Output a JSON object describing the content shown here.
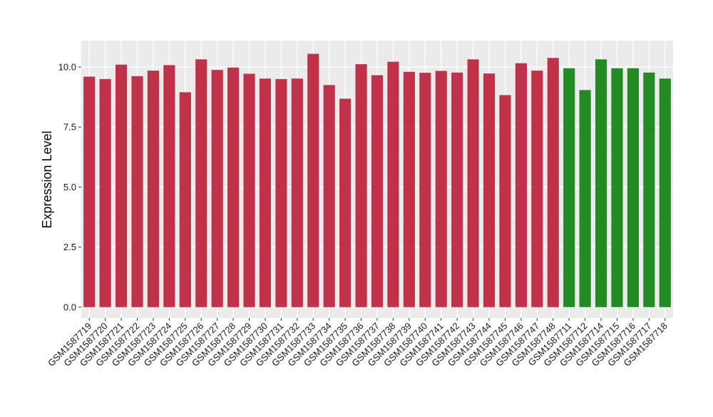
{
  "chart_data": {
    "type": "bar",
    "title": "",
    "xlabel": "",
    "ylabel": "Expression Level",
    "ylim": [
      -0.45,
      11.1
    ],
    "yticks": [
      0.0,
      2.5,
      5.0,
      7.5,
      10.0
    ],
    "ytick_labels": [
      "0.0",
      "2.5",
      "5.0",
      "7.5",
      "10.0"
    ],
    "grid": true,
    "legend": "none",
    "categories": [
      "GSM1587719",
      "GSM1587720",
      "GSM1587721",
      "GSM1587722",
      "GSM1587723",
      "GSM1587724",
      "GSM1587725",
      "GSM1587726",
      "GSM1587727",
      "GSM1587728",
      "GSM1587729",
      "GSM1587730",
      "GSM1587731",
      "GSM1587732",
      "GSM1587733",
      "GSM1587734",
      "GSM1587735",
      "GSM1587736",
      "GSM1587737",
      "GSM1587738",
      "GSM1587739",
      "GSM1587740",
      "GSM1587741",
      "GSM1587742",
      "GSM1587743",
      "GSM1587744",
      "GSM1587745",
      "GSM1587746",
      "GSM1587747",
      "GSM1587748",
      "GSM1587711",
      "GSM1587712",
      "GSM1587714",
      "GSM1587715",
      "GSM1587716",
      "GSM1587717",
      "GSM1587718"
    ],
    "values": [
      9.6,
      9.5,
      10.1,
      9.62,
      9.85,
      10.08,
      8.95,
      10.32,
      9.88,
      9.98,
      9.72,
      9.52,
      9.5,
      9.52,
      10.55,
      9.25,
      8.68,
      10.12,
      9.66,
      10.22,
      9.8,
      9.76,
      9.84,
      9.77,
      10.32,
      9.73,
      8.83,
      10.16,
      9.85,
      10.38,
      9.95,
      9.04,
      10.32,
      9.95,
      9.95,
      9.77,
      9.52
    ],
    "groups": [
      "a",
      "a",
      "a",
      "a",
      "a",
      "a",
      "a",
      "a",
      "a",
      "a",
      "a",
      "a",
      "a",
      "a",
      "a",
      "a",
      "a",
      "a",
      "a",
      "a",
      "a",
      "a",
      "a",
      "a",
      "a",
      "a",
      "a",
      "a",
      "a",
      "a",
      "b",
      "b",
      "b",
      "b",
      "b",
      "b",
      "b"
    ],
    "colors": {
      "a": "#c0314a",
      "b": "#238b23",
      "panel": "#ebebeb",
      "grid_major": "#ffffff",
      "grid_minor": "#f5f5f5"
    }
  }
}
